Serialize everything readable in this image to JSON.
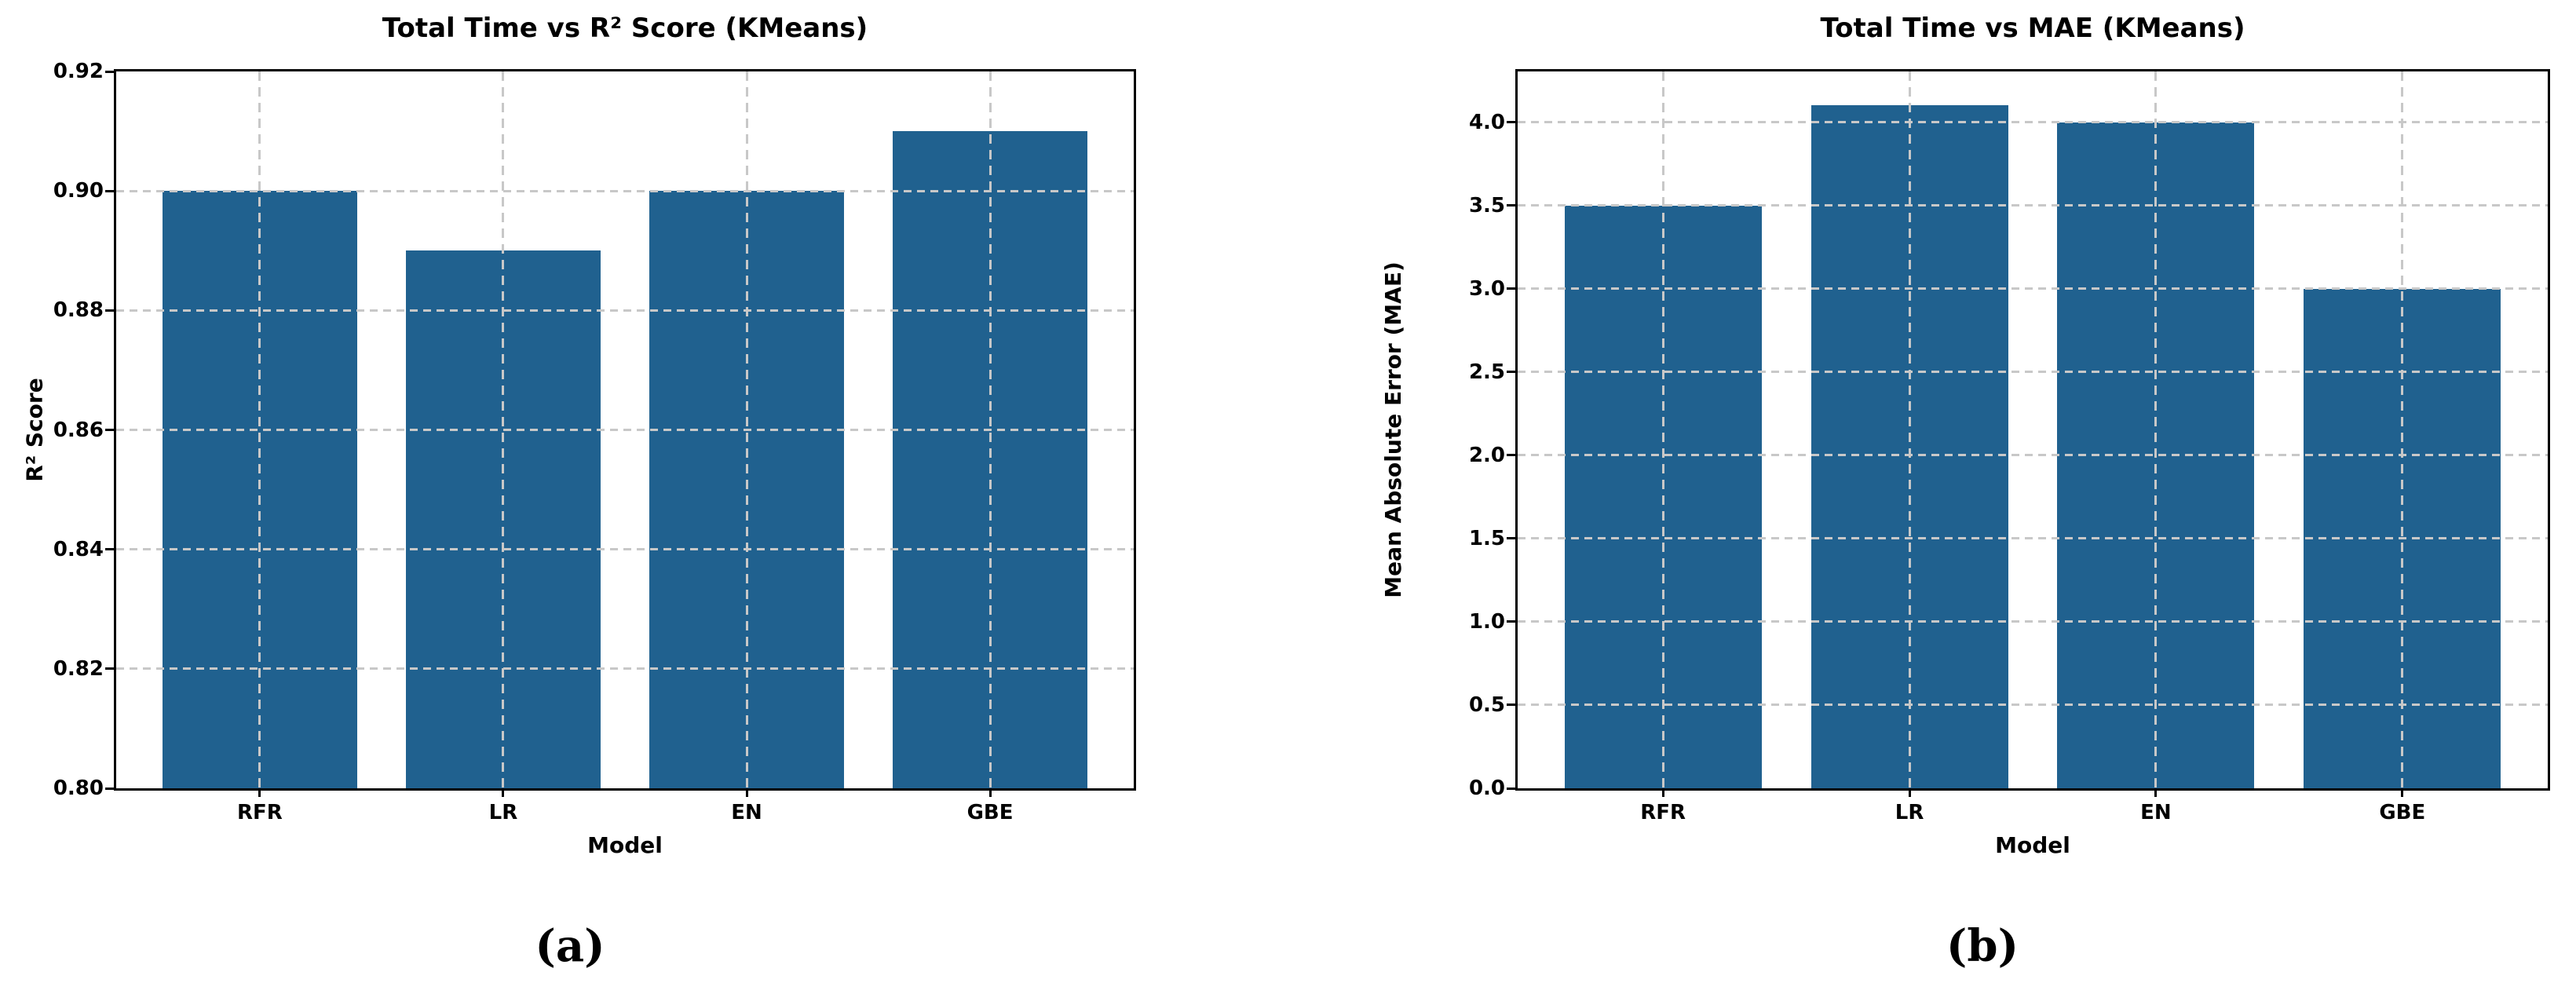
{
  "page": {
    "background": "#ffffff"
  },
  "figure": {
    "captions": [
      {
        "label": "(a)"
      },
      {
        "label": "(b)"
      }
    ]
  },
  "colors": {
    "bar_fill": "#20618f",
    "grid_line": "#c8c8c8",
    "axis_line": "#000000",
    "text": "#000000"
  },
  "chart_data": [
    {
      "type": "bar",
      "title": "Total Time vs R² Score (KMeans)",
      "xlabel": "Model",
      "ylabel": "R² Score",
      "categories": [
        "RFR",
        "LR",
        "EN",
        "GBE"
      ],
      "values": [
        0.9,
        0.89,
        0.9,
        0.91
      ],
      "ylim": [
        0.8,
        0.92
      ],
      "yticks": [
        0.8,
        0.82,
        0.84,
        0.86,
        0.88,
        0.9,
        0.92
      ],
      "ytick_labels": [
        "0.80",
        "0.82",
        "0.84",
        "0.86",
        "0.88",
        "0.90",
        "0.92"
      ],
      "grid": "dashed, both axes, drawn over bars",
      "legend": "none",
      "bar_width_fraction_of_unit": 0.8,
      "bar_color": "#20618f"
    },
    {
      "type": "bar",
      "title": "Total Time vs MAE (KMeans)",
      "xlabel": "Model",
      "ylabel": "Mean Absolute Error (MAE)",
      "categories": [
        "RFR",
        "LR",
        "EN",
        "GBE"
      ],
      "values": [
        3.5,
        4.1,
        4.0,
        3.0
      ],
      "ylim": [
        0,
        4.305
      ],
      "yticks": [
        0.0,
        0.5,
        1.0,
        1.5,
        2.0,
        2.5,
        3.0,
        3.5,
        4.0
      ],
      "ytick_labels": [
        "0.0",
        "0.5",
        "1.0",
        "1.5",
        "2.0",
        "2.5",
        "3.0",
        "3.5",
        "4.0"
      ],
      "grid": "dashed, both axes, drawn over bars",
      "legend": "none",
      "bar_width_fraction_of_unit": 0.8,
      "bar_color": "#20618f"
    }
  ]
}
